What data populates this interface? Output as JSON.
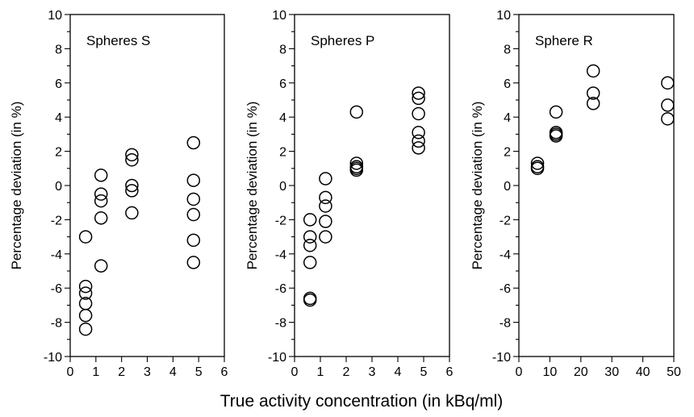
{
  "xlabel": "True activity concentration (in kBq/ml)",
  "chart_data": [
    {
      "type": "scatter",
      "title": "Spheres S",
      "ylabel": "Percentage deviation (in %)",
      "xlim": [
        0,
        6
      ],
      "ylim": [
        -10,
        10
      ],
      "xticks": [
        0,
        1,
        2,
        3,
        4,
        5,
        6
      ],
      "yticks": [
        -10,
        -8,
        -6,
        -4,
        -2,
        0,
        2,
        4,
        6,
        8,
        10
      ],
      "grid": false,
      "points": [
        [
          0.6,
          -3.0
        ],
        [
          0.6,
          -5.9
        ],
        [
          0.6,
          -6.3
        ],
        [
          0.6,
          -6.9
        ],
        [
          0.6,
          -7.6
        ],
        [
          0.6,
          -8.4
        ],
        [
          1.2,
          0.6
        ],
        [
          1.2,
          -0.5
        ],
        [
          1.2,
          -0.9
        ],
        [
          1.2,
          -1.9
        ],
        [
          1.2,
          -4.7
        ],
        [
          2.4,
          1.8
        ],
        [
          2.4,
          1.5
        ],
        [
          2.4,
          0.0
        ],
        [
          2.4,
          -0.3
        ],
        [
          2.4,
          -1.6
        ],
        [
          4.8,
          2.5
        ],
        [
          4.8,
          0.3
        ],
        [
          4.8,
          -0.8
        ],
        [
          4.8,
          -1.7
        ],
        [
          4.8,
          -3.2
        ],
        [
          4.8,
          -4.5
        ]
      ]
    },
    {
      "type": "scatter",
      "title": "Spheres P",
      "ylabel": "Percentage deviation (in %)",
      "xlim": [
        0,
        6
      ],
      "ylim": [
        -10,
        10
      ],
      "xticks": [
        0,
        1,
        2,
        3,
        4,
        5,
        6
      ],
      "yticks": [
        -10,
        -8,
        -6,
        -4,
        -2,
        0,
        2,
        4,
        6,
        8,
        10
      ],
      "grid": false,
      "points": [
        [
          0.6,
          -2.0
        ],
        [
          0.6,
          -3.0
        ],
        [
          0.6,
          -3.5
        ],
        [
          0.6,
          -4.5
        ],
        [
          0.6,
          -6.6
        ],
        [
          0.6,
          -6.7
        ],
        [
          1.2,
          0.4
        ],
        [
          1.2,
          -0.7
        ],
        [
          1.2,
          -1.2
        ],
        [
          1.2,
          -2.1
        ],
        [
          1.2,
          -3.0
        ],
        [
          2.4,
          4.3
        ],
        [
          2.4,
          1.3
        ],
        [
          2.4,
          1.1
        ],
        [
          2.4,
          1.0
        ],
        [
          2.4,
          0.9
        ],
        [
          4.8,
          5.4
        ],
        [
          4.8,
          5.1
        ],
        [
          4.8,
          4.2
        ],
        [
          4.8,
          3.1
        ],
        [
          4.8,
          2.6
        ],
        [
          4.8,
          2.2
        ]
      ]
    },
    {
      "type": "scatter",
      "title": "Sphere R",
      "ylabel": "Percentage deviation (in %)",
      "xlim": [
        0,
        50
      ],
      "ylim": [
        -10,
        10
      ],
      "xticks": [
        0,
        10,
        20,
        30,
        40,
        50
      ],
      "yticks": [
        -10,
        -8,
        -6,
        -4,
        -2,
        0,
        2,
        4,
        6,
        8,
        10
      ],
      "grid": false,
      "points": [
        [
          6,
          1.3
        ],
        [
          6,
          1.1
        ],
        [
          6,
          1.0
        ],
        [
          12,
          4.3
        ],
        [
          12,
          3.1
        ],
        [
          12,
          3.0
        ],
        [
          12,
          2.9
        ],
        [
          24,
          6.7
        ],
        [
          24,
          5.4
        ],
        [
          24,
          4.8
        ],
        [
          48,
          6.0
        ],
        [
          48,
          4.7
        ],
        [
          48,
          3.9
        ]
      ]
    }
  ]
}
